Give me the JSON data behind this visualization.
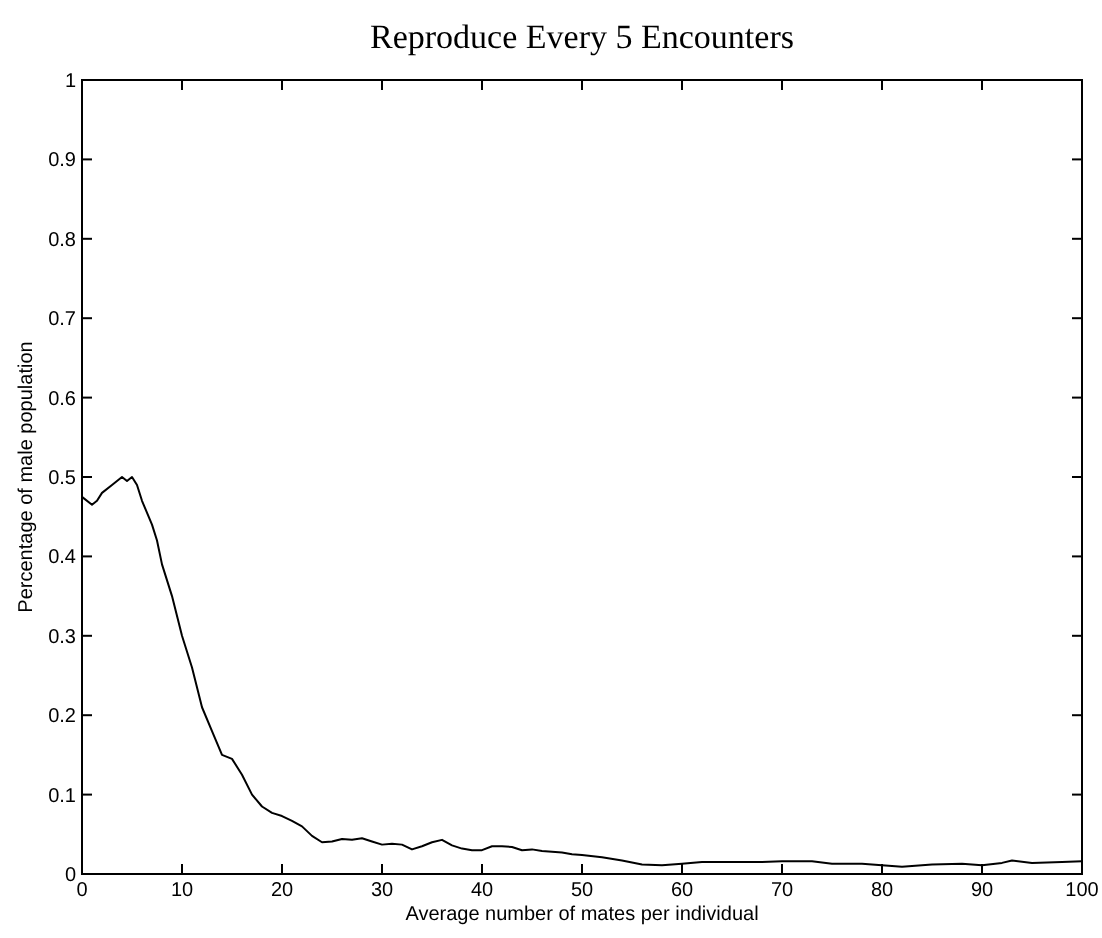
{
  "chart_data": {
    "type": "line",
    "title": "Reproduce Every 5 Encounters",
    "xlabel": "Average number of mates per individual",
    "ylabel": "Percentage of male population",
    "x": [
      0,
      1,
      1.5,
      2,
      3,
      4,
      4.5,
      5,
      5.5,
      6,
      7,
      7.5,
      8,
      9,
      10,
      11,
      12,
      13,
      14,
      15,
      16,
      17,
      18,
      19,
      20,
      21,
      22,
      23,
      24,
      25,
      26,
      27,
      28,
      29,
      30,
      31,
      32,
      33,
      34,
      35,
      36,
      37,
      38,
      39,
      40,
      41,
      42,
      43,
      44,
      45,
      46,
      47,
      48,
      49,
      50,
      52,
      54,
      56,
      58,
      60,
      62,
      65,
      68,
      70,
      73,
      75,
      78,
      80,
      82,
      85,
      88,
      90,
      92,
      93,
      95,
      98,
      100
    ],
    "series": [
      {
        "color": "#000000",
        "values": [
          0.475,
          0.465,
          0.47,
          0.48,
          0.49,
          0.5,
          0.495,
          0.5,
          0.49,
          0.47,
          0.44,
          0.42,
          0.39,
          0.35,
          0.3,
          0.26,
          0.21,
          0.18,
          0.15,
          0.145,
          0.125,
          0.1,
          0.085,
          0.077,
          0.073,
          0.067,
          0.06,
          0.048,
          0.04,
          0.041,
          0.044,
          0.043,
          0.045,
          0.041,
          0.037,
          0.038,
          0.037,
          0.031,
          0.035,
          0.04,
          0.043,
          0.036,
          0.032,
          0.03,
          0.03,
          0.035,
          0.035,
          0.034,
          0.03,
          0.031,
          0.029,
          0.028,
          0.027,
          0.025,
          0.024,
          0.021,
          0.017,
          0.012,
          0.011,
          0.013,
          0.015,
          0.015,
          0.015,
          0.016,
          0.016,
          0.013,
          0.013,
          0.011,
          0.009,
          0.012,
          0.013,
          0.011,
          0.014,
          0.017,
          0.014,
          0.015,
          0.016
        ]
      }
    ],
    "xlim": [
      0,
      100
    ],
    "xticks": [
      0,
      10,
      20,
      30,
      40,
      50,
      60,
      70,
      80,
      90,
      100
    ],
    "ylim": [
      0,
      1
    ],
    "yticks": [
      0,
      0.1,
      0.2,
      0.3,
      0.4,
      0.5,
      0.6,
      0.7,
      0.8,
      0.9,
      1
    ],
    "grid": false,
    "line_style": "solid",
    "marker": "none"
  }
}
